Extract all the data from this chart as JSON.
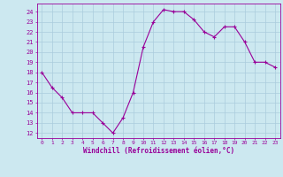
{
  "x": [
    0,
    1,
    2,
    3,
    4,
    5,
    6,
    7,
    8,
    9,
    10,
    11,
    12,
    13,
    14,
    15,
    16,
    17,
    18,
    19,
    20,
    21,
    22,
    23
  ],
  "y": [
    18,
    16.5,
    15.5,
    14,
    14,
    14,
    13,
    12,
    13.5,
    16,
    20.5,
    23,
    24.2,
    24,
    24,
    23.2,
    22,
    21.5,
    22.5,
    22.5,
    21,
    19,
    19,
    18.5
  ],
  "line_color": "#990099",
  "marker_color": "#990099",
  "bg_color": "#cce8f0",
  "grid_color": "#aaccdd",
  "xlabel": "Windchill (Refroidissement éolien,°C)",
  "xlabel_color": "#990099",
  "ylabel_ticks": [
    12,
    13,
    14,
    15,
    16,
    17,
    18,
    19,
    20,
    21,
    22,
    23,
    24
  ],
  "xlim": [
    -0.5,
    23.5
  ],
  "ylim": [
    11.5,
    24.8
  ],
  "figsize": [
    3.2,
    2.0
  ],
  "dpi": 100
}
